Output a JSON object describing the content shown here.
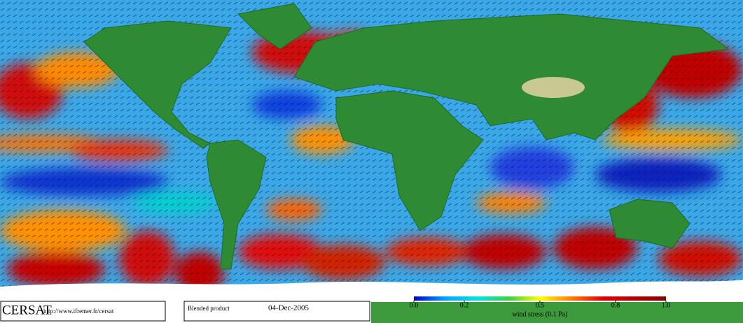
{
  "logo": "CERSAT",
  "url": "http://www.ifremer.fr/cersat",
  "product": "Blended product",
  "date": "04-Dec-2005",
  "colorbar": {
    "label": "wind stress (0.1 Pa)",
    "range": [
      0,
      1
    ],
    "ticks": [
      {
        "value": 0,
        "label": "0.0"
      },
      {
        "value": 0.2,
        "label": "0.2"
      },
      {
        "value": 0.5,
        "label": "0.5"
      },
      {
        "value": 0.8,
        "label": "0.8"
      },
      {
        "value": 1,
        "label": "1.0"
      }
    ]
  }
}
